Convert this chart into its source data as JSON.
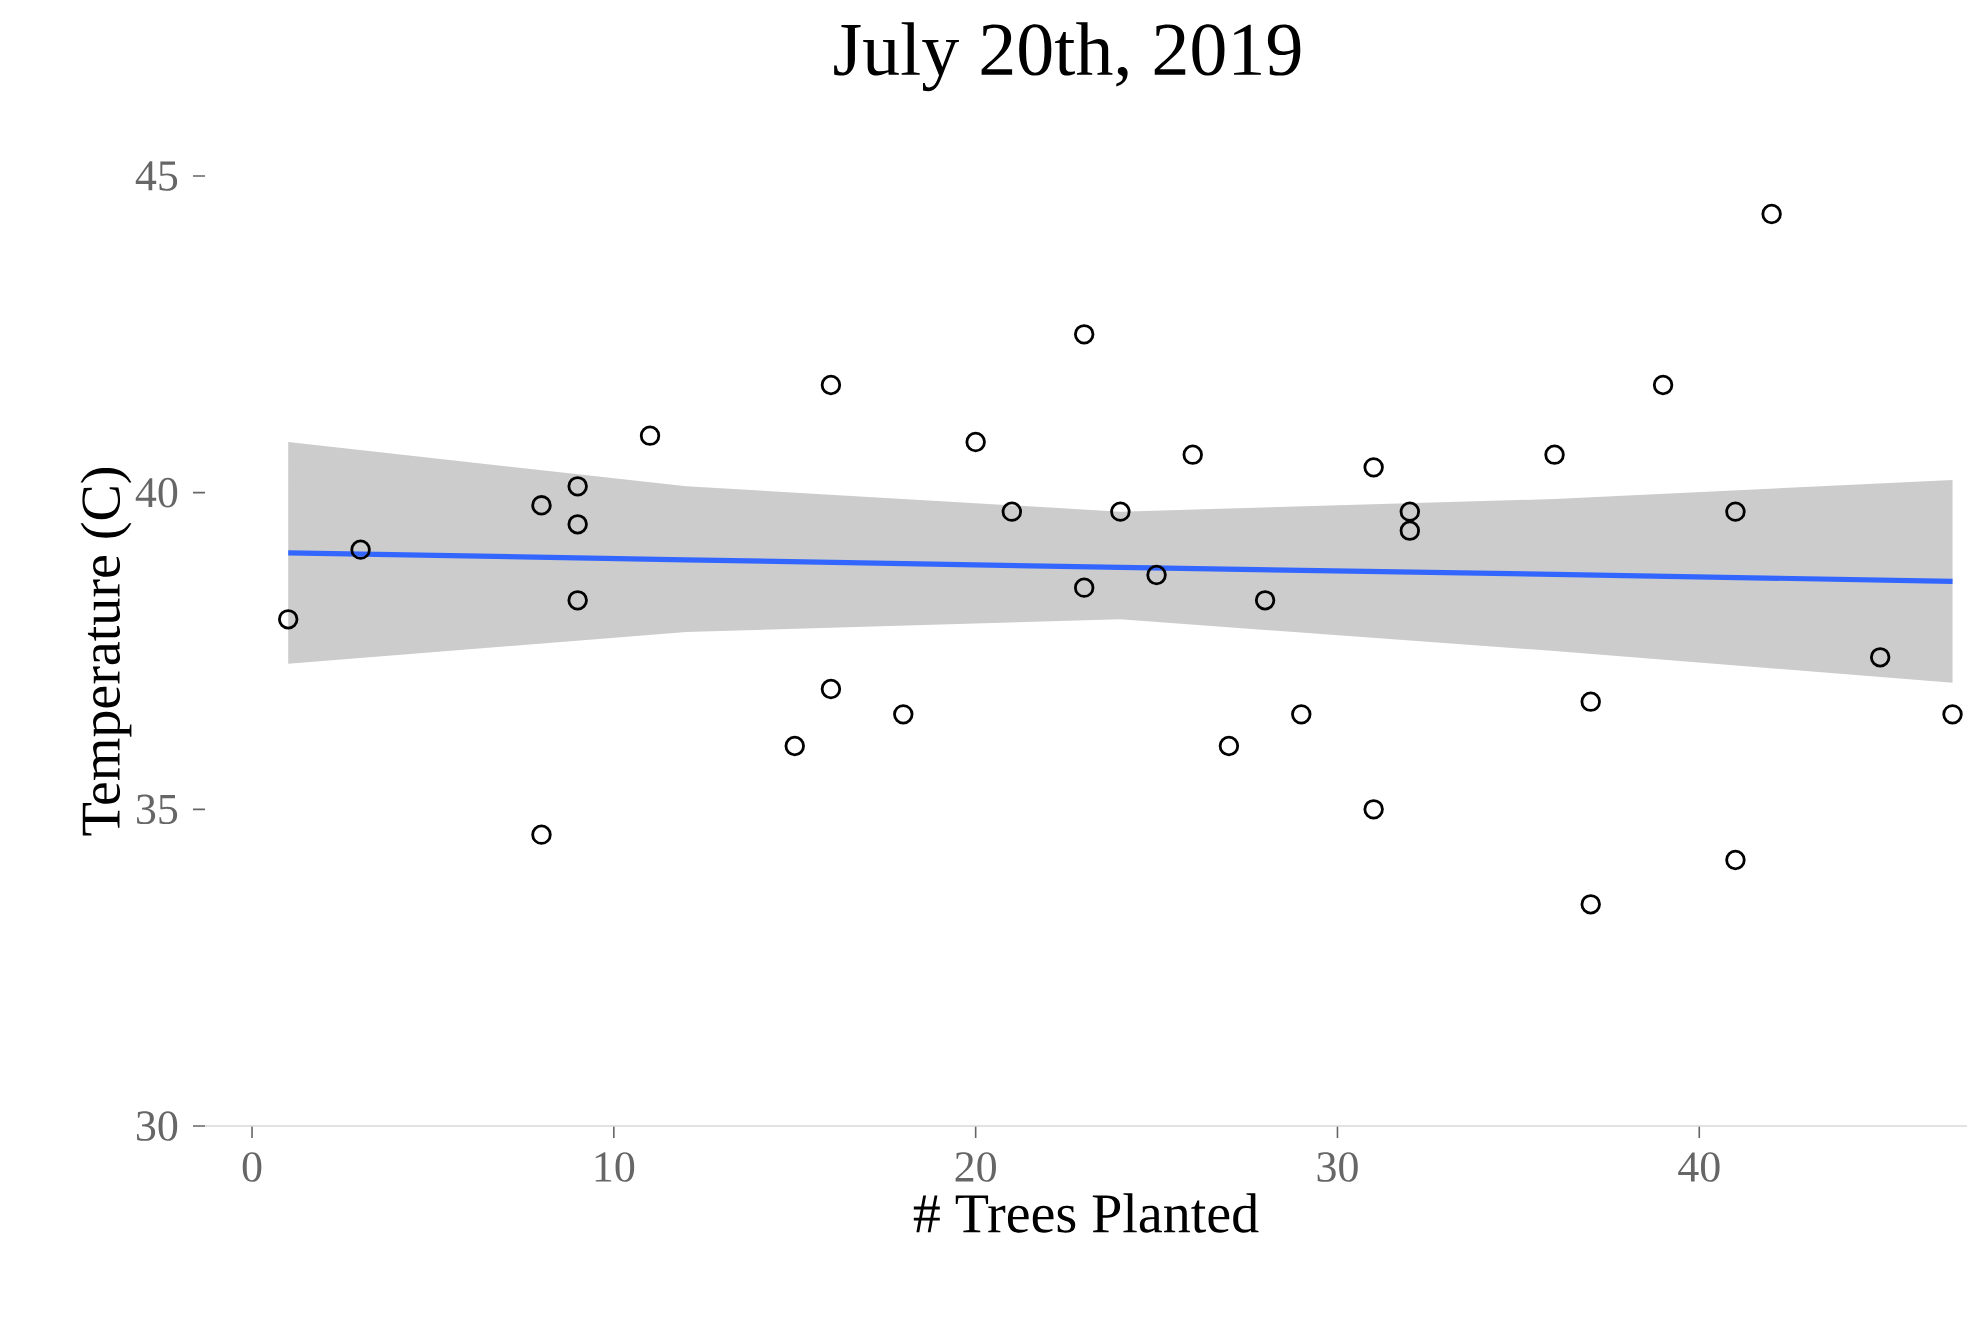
{
  "chart_data": {
    "type": "scatter",
    "title": "July 20th, 2019",
    "xlabel": "# Trees Planted",
    "ylabel": "Temperature (C)",
    "xlim": [
      -1.3,
      47.4
    ],
    "ylim": [
      30,
      45
    ],
    "xticks": [
      0,
      10,
      20,
      30,
      40
    ],
    "yticks": [
      30,
      35,
      40,
      45
    ],
    "grid": false,
    "series": [
      {
        "type": "line",
        "color": "#3366ff",
        "x": [
          1,
          12,
          24,
          36,
          47
        ],
        "values": [
          39.05,
          38.94,
          38.82,
          38.71,
          38.6
        ],
        "lower": [
          37.3,
          37.8,
          38.0,
          37.5,
          37.0
        ],
        "upper": [
          40.8,
          40.1,
          39.7,
          39.9,
          40.2
        ]
      },
      {
        "type": "scatter",
        "marker": "circle",
        "color": "#000000",
        "x": [
          1,
          3,
          8,
          9,
          9,
          9,
          8,
          11,
          16,
          16,
          15,
          18,
          20,
          21,
          23,
          23,
          24,
          25,
          26,
          27,
          28,
          29,
          31,
          31,
          32,
          32,
          36,
          37,
          37,
          39,
          41,
          41,
          42,
          45,
          47
        ],
        "values": [
          38.0,
          39.1,
          39.8,
          40.1,
          39.5,
          38.3,
          34.6,
          40.9,
          41.7,
          36.9,
          36.0,
          36.5,
          40.8,
          39.7,
          42.5,
          38.5,
          39.7,
          38.7,
          40.6,
          36.0,
          38.3,
          36.5,
          40.4,
          35.0,
          39.7,
          39.4,
          40.6,
          36.7,
          33.5,
          41.7,
          39.7,
          34.2,
          44.4,
          37.4,
          36.5
        ]
      }
    ]
  }
}
